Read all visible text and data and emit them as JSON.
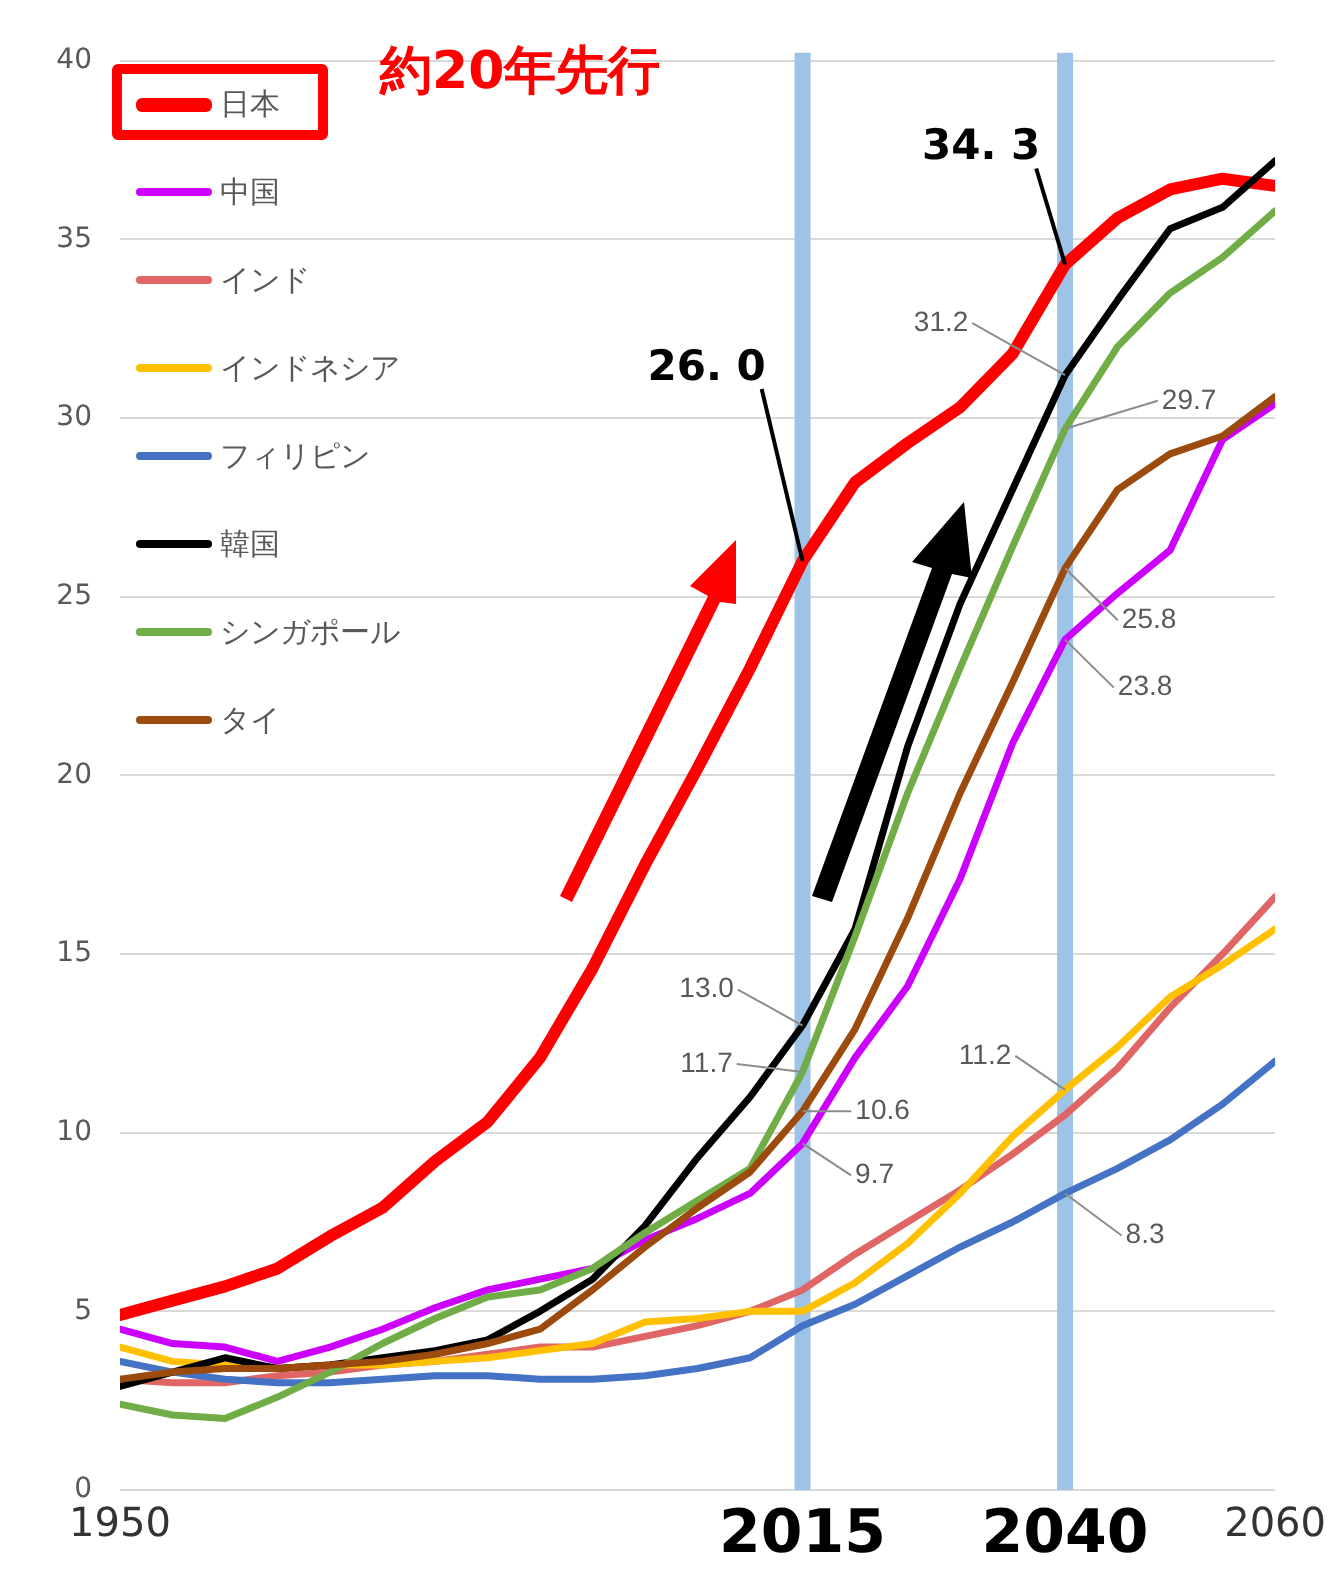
{
  "chart_data": {
    "type": "line",
    "x": [
      1950,
      1955,
      1960,
      1965,
      1970,
      1975,
      1980,
      1985,
      1990,
      1995,
      2000,
      2005,
      2010,
      2015,
      2020,
      2025,
      2030,
      2035,
      2040,
      2045,
      2050,
      2055,
      2060
    ],
    "series": [
      {
        "name": "日本",
        "color": "#ff0000",
        "values": [
          4.9,
          5.3,
          5.7,
          6.2,
          7.1,
          7.9,
          9.2,
          10.3,
          12.1,
          14.6,
          17.5,
          20.2,
          23.0,
          26.0,
          28.2,
          29.3,
          30.3,
          31.8,
          34.3,
          35.6,
          36.4,
          36.7,
          36.5
        ],
        "value_labels": [
          null,
          null,
          null,
          null,
          null,
          null,
          null,
          null,
          null,
          null,
          null,
          null,
          null,
          "26. 0",
          null,
          null,
          null,
          null,
          "34. 3",
          null,
          null,
          null,
          null
        ]
      },
      {
        "name": "中国",
        "color": "#cc00ff",
        "values": [
          4.5,
          4.1,
          4.0,
          3.6,
          4.0,
          4.5,
          5.1,
          5.6,
          5.9,
          6.2,
          7.0,
          7.6,
          8.3,
          9.7,
          12.1,
          14.1,
          17.1,
          20.9,
          23.8,
          25.1,
          26.3,
          29.4,
          30.4
        ],
        "value_labels": [
          null,
          null,
          null,
          null,
          null,
          null,
          null,
          null,
          null,
          null,
          null,
          null,
          null,
          "9.7",
          null,
          null,
          null,
          null,
          "23.8",
          null,
          null,
          null,
          null
        ]
      },
      {
        "name": "インド",
        "color": "#e06666",
        "values": [
          3.1,
          3.0,
          3.0,
          3.2,
          3.3,
          3.5,
          3.6,
          3.8,
          4.0,
          4.0,
          4.3,
          4.6,
          5.0,
          5.6,
          6.6,
          7.5,
          8.4,
          9.4,
          10.5,
          11.8,
          13.5,
          15.0,
          16.6
        ]
      },
      {
        "name": "インドネシア",
        "color": "#ffc000",
        "values": [
          4.0,
          3.6,
          3.5,
          3.4,
          3.5,
          3.5,
          3.6,
          3.7,
          3.9,
          4.1,
          4.7,
          4.8,
          5.0,
          5.0,
          5.8,
          6.9,
          8.3,
          9.9,
          11.2,
          12.4,
          13.8,
          14.7,
          15.7
        ],
        "value_labels": [
          null,
          null,
          null,
          null,
          null,
          null,
          null,
          null,
          null,
          null,
          null,
          null,
          null,
          null,
          null,
          null,
          null,
          null,
          "11.2",
          null,
          null,
          null,
          null
        ]
      },
      {
        "name": "フィリピン",
        "color": "#4472c4",
        "values": [
          3.6,
          3.3,
          3.1,
          3.0,
          3.0,
          3.1,
          3.2,
          3.2,
          3.1,
          3.1,
          3.2,
          3.4,
          3.7,
          4.6,
          5.2,
          6.0,
          6.8,
          7.5,
          8.3,
          9.0,
          9.8,
          10.8,
          12.0
        ],
        "value_labels": [
          null,
          null,
          null,
          null,
          null,
          null,
          null,
          null,
          null,
          null,
          null,
          null,
          null,
          null,
          null,
          null,
          null,
          null,
          "8.3",
          null,
          null,
          null,
          null
        ]
      },
      {
        "name": "韓国",
        "color": "#000000",
        "values": [
          2.9,
          3.3,
          3.7,
          3.4,
          3.5,
          3.7,
          3.9,
          4.2,
          5.0,
          5.9,
          7.4,
          9.3,
          11.0,
          13.0,
          15.7,
          20.8,
          24.8,
          28.0,
          31.2,
          33.3,
          35.3,
          35.9,
          37.2
        ],
        "value_labels": [
          null,
          null,
          null,
          null,
          null,
          null,
          null,
          null,
          null,
          null,
          null,
          null,
          null,
          "13.0",
          null,
          null,
          null,
          null,
          "31.2",
          null,
          null,
          null,
          null
        ]
      },
      {
        "name": "シンガポール",
        "color": "#70ad47",
        "values": [
          2.4,
          2.1,
          2.0,
          2.6,
          3.3,
          4.1,
          4.8,
          5.4,
          5.6,
          6.2,
          7.2,
          8.1,
          9.0,
          11.7,
          15.5,
          19.5,
          23.0,
          26.4,
          29.7,
          32.0,
          33.5,
          34.5,
          35.8
        ],
        "value_labels": [
          null,
          null,
          null,
          null,
          null,
          null,
          null,
          null,
          null,
          null,
          null,
          null,
          null,
          "11.7",
          null,
          null,
          null,
          null,
          "29.7",
          null,
          null,
          null,
          null
        ]
      },
      {
        "name": "タイ",
        "color": "#9c4a0e",
        "values": [
          3.1,
          3.3,
          3.4,
          3.4,
          3.5,
          3.6,
          3.8,
          4.1,
          4.5,
          5.6,
          6.8,
          7.9,
          8.9,
          10.6,
          12.9,
          16.0,
          19.5,
          22.6,
          25.8,
          28.0,
          29.0,
          29.5,
          30.6
        ],
        "value_labels": [
          null,
          null,
          null,
          null,
          null,
          null,
          null,
          null,
          null,
          null,
          null,
          null,
          null,
          "10.6",
          null,
          null,
          null,
          null,
          "25.8",
          null,
          null,
          null,
          null
        ]
      }
    ],
    "xlim": [
      1950,
      2060
    ],
    "xticks": [
      1950,
      2060
    ],
    "ylim": [
      0,
      40
    ],
    "yticks": [
      0,
      5,
      10,
      15,
      20,
      25,
      30,
      35,
      40
    ],
    "grid": "y",
    "legend": "top left",
    "ref_lines": [
      {
        "axis": "x",
        "value": 2015,
        "label": "2015",
        "color": "#9dc3e6"
      },
      {
        "axis": "x",
        "value": 2040,
        "label": "2040",
        "color": "#9dc3e6"
      }
    ],
    "annotations": [
      "約20年先行"
    ]
  }
}
